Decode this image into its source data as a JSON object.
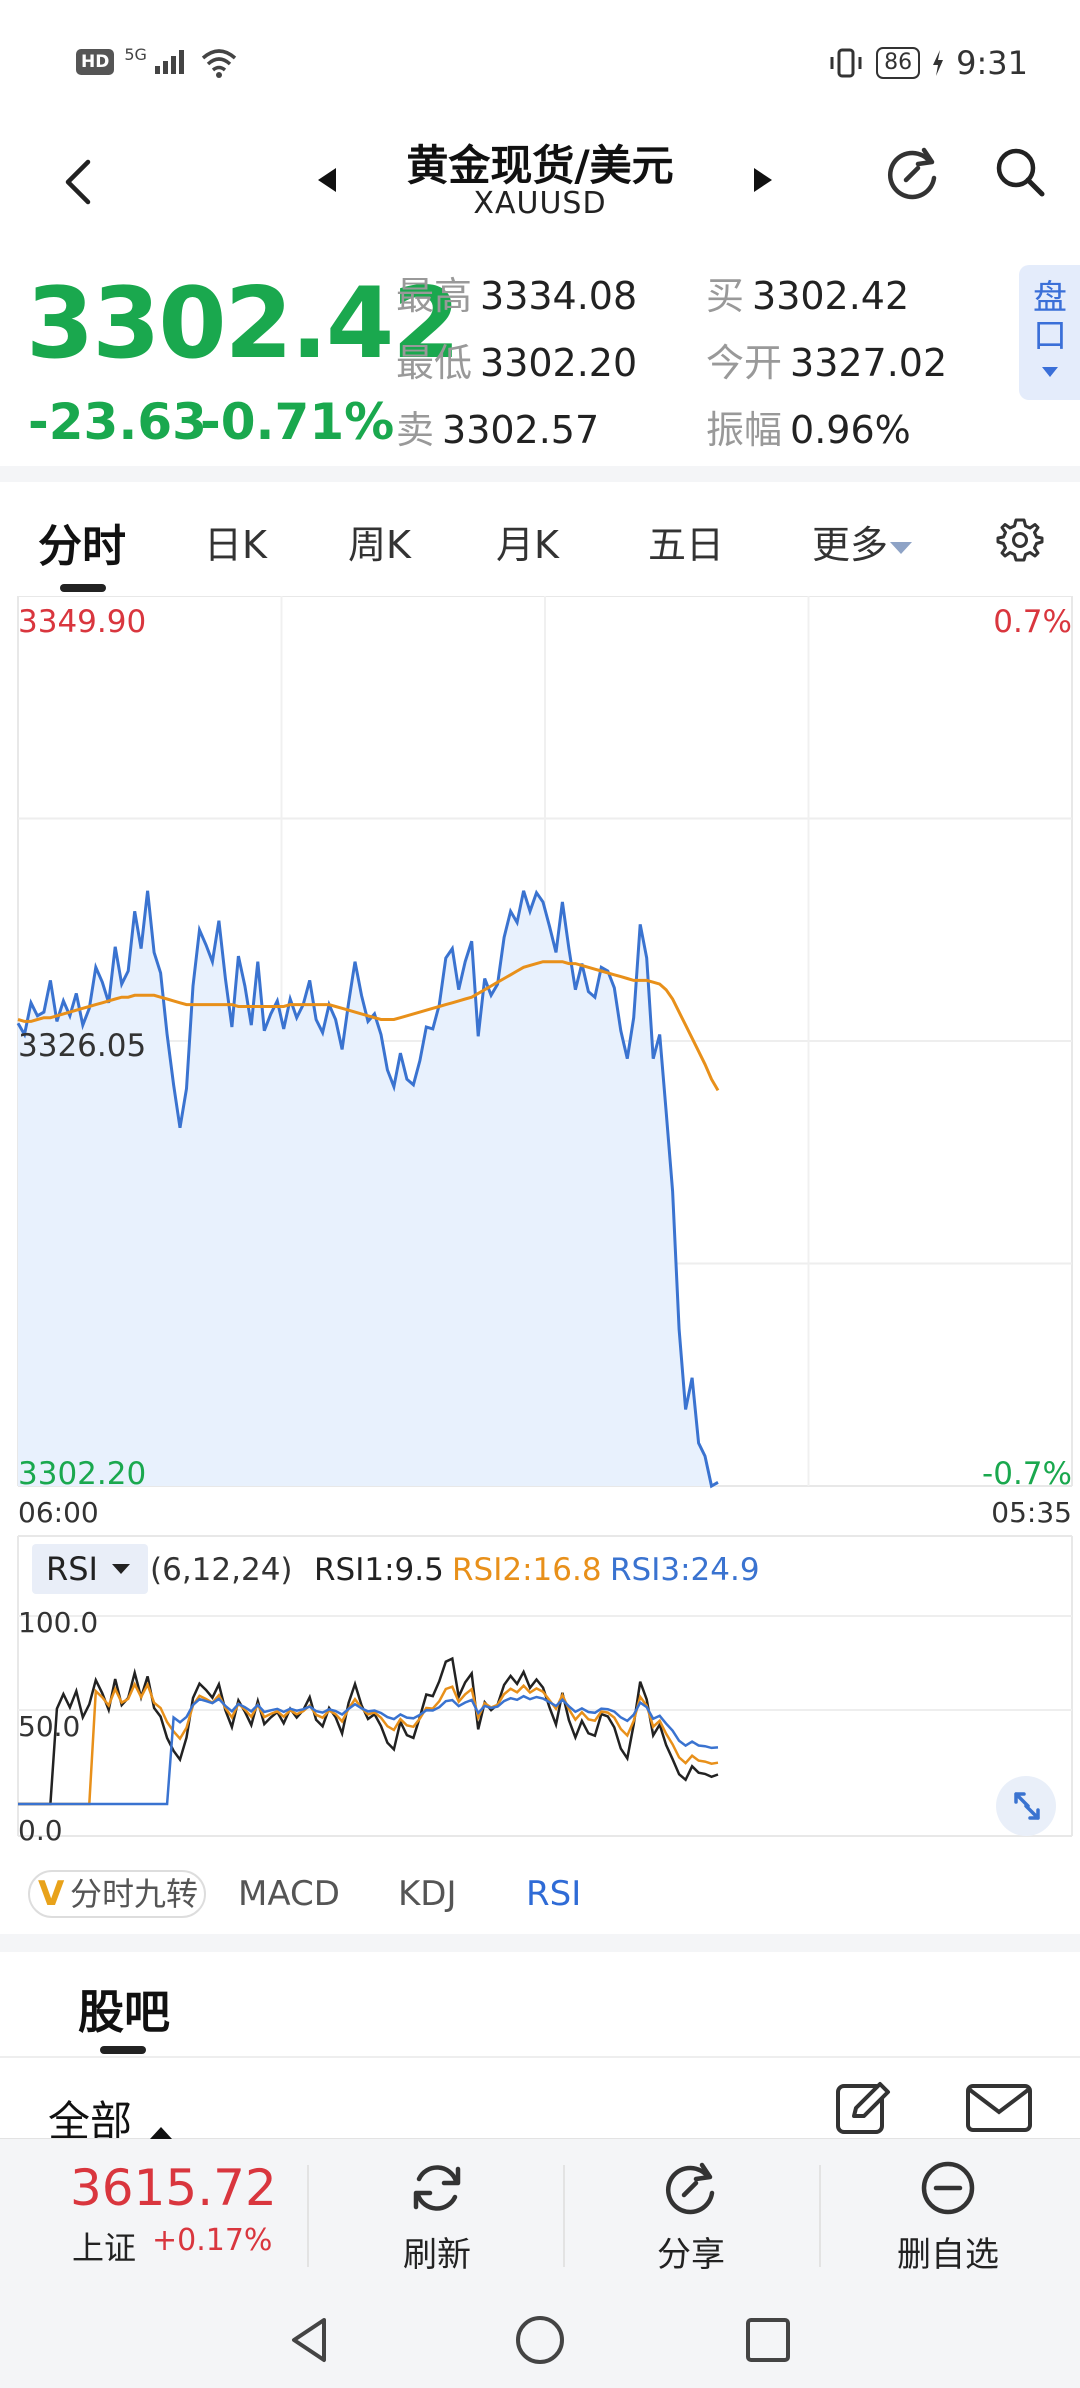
{
  "status_bar": {
    "hd": "HD",
    "net": "5G",
    "battery": "86",
    "time": "9:31"
  },
  "header": {
    "title": "黄金现货/美元",
    "symbol": "XAUUSD"
  },
  "quote": {
    "price": "3302.42",
    "change": "-23.63",
    "change_pct": "-0.71%",
    "high_label": "最高",
    "high": "3334.08",
    "low_label": "最低",
    "low": "3302.20",
    "sell_label": "卖",
    "sell": "3302.57",
    "buy_label": "买",
    "buy": "3302.42",
    "open_label": "今开",
    "open": "3327.02",
    "amp_label": "振幅",
    "amp": "0.96%",
    "pankou": "盘口"
  },
  "tabs": [
    "分时",
    "日K",
    "周K",
    "月K",
    "五日",
    "更多"
  ],
  "chart": {
    "y_max": "3349.90",
    "y_mid": "3326.05",
    "y_min": "3302.20",
    "pct_max": "0.7%",
    "pct_min": "-0.7%",
    "x_start": "06:00",
    "x_end": "05:35"
  },
  "rsi": {
    "selector": "RSI",
    "params": "(6,12,24)",
    "rsi1": "RSI1:9.5",
    "rsi2": "RSI2:16.8",
    "rsi3": "RSI3:24.9",
    "y_100": "100.0",
    "y_50": "50.0",
    "y_0": "0.0"
  },
  "indicator_tabs": {
    "jiuzhuan": "分时九转",
    "jiuzhuan_badge": "V",
    "macd": "MACD",
    "kdj": "KDJ",
    "rsi": "RSI"
  },
  "guba": {
    "title": "股吧",
    "filter": "全部"
  },
  "bottom_bar": {
    "index_value": "3615.72",
    "index_name": "上证",
    "index_pct": "+0.17%",
    "refresh": "刷新",
    "share": "分享",
    "remove": "删自选"
  },
  "colors": {
    "up": "#d9363e",
    "down": "#1aa84e",
    "price_line": "#3a73d0",
    "avg_line": "#e8901a",
    "accent": "#2f6bd6"
  },
  "chart_data": {
    "type": "line",
    "ylim": [
      3302.2,
      3349.9
    ],
    "x_labels": [
      "06:00",
      "05:35"
    ],
    "series": [
      {
        "values": [
          3327.0,
          3326.4,
          3328.1,
          3327.4,
          3327.6,
          3329.3,
          3327.1,
          3328.2,
          3327.4,
          3328.6,
          3326.9,
          3327.8,
          3330.0,
          3329.2,
          3328.1,
          3331.1,
          3329.1,
          3329.8,
          3333.0,
          3331.0,
          3334.1,
          3330.8,
          3329.7,
          3326.4,
          3323.7,
          3321.4,
          3323.5,
          3329.0,
          3332.0,
          3331.2,
          3330.3,
          3332.5,
          3329.4,
          3326.8,
          3330.6,
          3329.0,
          3326.9,
          3330.3,
          3326.6,
          3327.5,
          3328.2,
          3326.7,
          3328.3,
          3327.3,
          3328.0,
          3329.3,
          3327.2,
          3326.5,
          3328.0,
          3327.2,
          3325.6,
          3328.1,
          3330.3,
          3328.5,
          3327.1,
          3327.5,
          3326.4,
          3324.5,
          3323.6,
          3325.4,
          3324.0,
          3323.7,
          3325.0,
          3326.8,
          3326.7,
          3328.0,
          3330.5,
          3331.0,
          3328.8,
          3330.3,
          3331.4,
          3326.3,
          3329.4,
          3328.5,
          3329.1,
          3331.6,
          3333.0,
          3332.4,
          3334.1,
          3333.0,
          3334.0,
          3333.5,
          3332.2,
          3330.8,
          3333.5,
          3331.0,
          3328.8,
          3330.2,
          3328.7,
          3328.4,
          3330.0,
          3329.8,
          3328.9,
          3326.6,
          3325.1,
          3327.3,
          3332.3,
          3330.5,
          3325.1,
          3326.4,
          3322.3,
          3318.0,
          3310.6,
          3306.3,
          3308.0,
          3304.5,
          3303.8,
          3302.2,
          3302.4
        ],
        "color": "#3a73d0"
      },
      {
        "values": [
          3327.2,
          3327.1,
          3327.1,
          3327.2,
          3327.3,
          3327.3,
          3327.4,
          3327.5,
          3327.6,
          3327.7,
          3327.8,
          3327.9,
          3328.0,
          3328.1,
          3328.2,
          3328.3,
          3328.4,
          3328.4,
          3328.5,
          3328.5,
          3328.5,
          3328.5,
          3328.4,
          3328.3,
          3328.2,
          3328.1,
          3328.0,
          3328.0,
          3328.0,
          3328.0,
          3328.0,
          3328.0,
          3328.0,
          3328.0,
          3327.9,
          3327.9,
          3327.9,
          3327.9,
          3327.9,
          3327.9,
          3327.9,
          3327.9,
          3328.0,
          3328.0,
          3328.0,
          3328.0,
          3328.0,
          3328.0,
          3328.0,
          3327.9,
          3327.8,
          3327.7,
          3327.6,
          3327.5,
          3327.4,
          3327.3,
          3327.2,
          3327.2,
          3327.2,
          3327.3,
          3327.4,
          3327.5,
          3327.6,
          3327.7,
          3327.8,
          3327.9,
          3328.0,
          3328.1,
          3328.2,
          3328.3,
          3328.4,
          3328.6,
          3328.8,
          3329.0,
          3329.2,
          3329.4,
          3329.6,
          3329.8,
          3330.0,
          3330.1,
          3330.2,
          3330.3,
          3330.3,
          3330.3,
          3330.3,
          3330.2,
          3330.2,
          3330.1,
          3330.0,
          3329.9,
          3329.8,
          3329.7,
          3329.6,
          3329.5,
          3329.4,
          3329.3,
          3329.3,
          3329.3,
          3329.2,
          3329.1,
          3328.8,
          3328.3,
          3327.6,
          3326.9,
          3326.2,
          3325.5,
          3324.8,
          3324.0,
          3323.4
        ],
        "color": "#e8901a"
      }
    ]
  }
}
